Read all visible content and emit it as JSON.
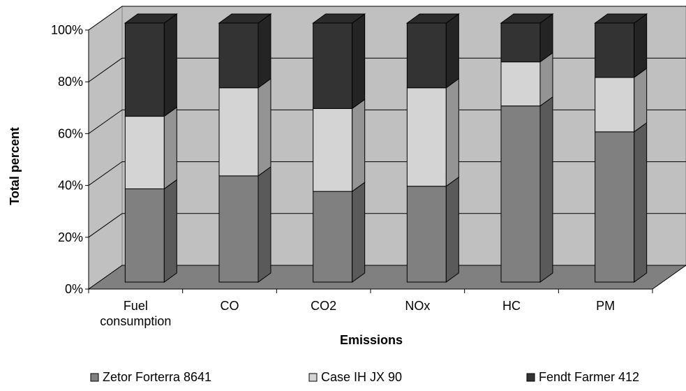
{
  "chart_data": {
    "type": "bar",
    "stacked": true,
    "percent_stacked": true,
    "three_d": true,
    "title": "",
    "xlabel": "Emissions",
    "ylabel": "Total percent",
    "categories": [
      [
        "Fuel",
        "consumption"
      ],
      [
        "CO"
      ],
      [
        "CO2"
      ],
      [
        "NOx"
      ],
      [
        "HC"
      ],
      [
        "PM"
      ]
    ],
    "ylim": [
      0,
      100
    ],
    "yticks": [
      "0%",
      "20%",
      "40%",
      "60%",
      "80%",
      "100%"
    ],
    "series": [
      {
        "name": "Zetor Forterra 8641",
        "values": [
          36,
          41,
          35,
          37,
          68,
          58
        ],
        "color": "#808080"
      },
      {
        "name": "Case IH JX 90",
        "values": [
          28,
          34,
          32,
          38,
          17,
          21
        ],
        "color": "#d4d4d4"
      },
      {
        "name": "Fendt Farmer 412",
        "values": [
          36,
          25,
          33,
          25,
          15,
          21
        ],
        "color": "#333333"
      }
    ],
    "grid": true,
    "legend_position": "bottom"
  }
}
